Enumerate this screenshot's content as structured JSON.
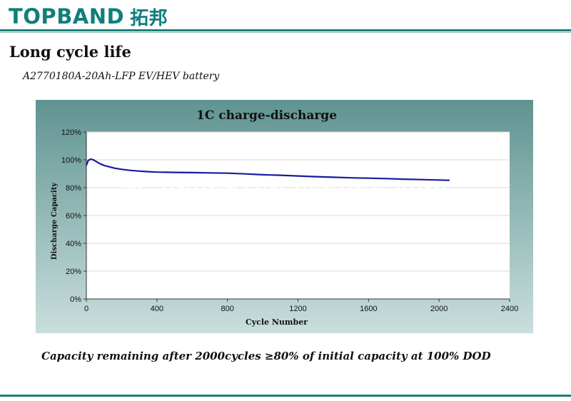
{
  "header": {
    "logo_text": "TOPBAND",
    "logo_cn": "拓邦"
  },
  "page": {
    "title": "Long cycle life",
    "subtitle": "A2770180A-20Ah-LFP  EV/HEV battery",
    "caption": "Capacity remaining after 2000cycles ≥80% of initial capacity at 100% DOD"
  },
  "watermark": "tp–energy.en.alibaba.com",
  "colors": {
    "accent": "#1f7e77",
    "series": "#1a1aa0"
  },
  "chart_data": {
    "type": "line",
    "title": "1C charge-discharge",
    "xlabel": "Cycle Number",
    "ylabel": "Discharge Capacity",
    "xlim": [
      0,
      2400
    ],
    "ylim": [
      0,
      120
    ],
    "xticks": [
      0,
      400,
      800,
      1200,
      1600,
      2000,
      2400
    ],
    "yticks": [
      0,
      20,
      40,
      60,
      80,
      100,
      120
    ],
    "xtick_labels": [
      "0",
      "400",
      "800",
      "1200",
      "1600",
      "2000",
      "2400"
    ],
    "ytick_labels": [
      "0%",
      "20%",
      "40%",
      "60%",
      "80%",
      "100%",
      "120%"
    ],
    "y_unit": "%",
    "grid": {
      "horizontal": true,
      "vertical": false
    },
    "legend": "none",
    "series": [
      {
        "x": [
          0,
          10,
          25,
          40,
          60,
          80,
          100,
          130,
          160,
          200,
          250,
          300,
          350,
          400,
          450,
          500,
          600,
          700,
          800,
          900,
          1000,
          1100,
          1200,
          1300,
          1400,
          1500,
          1600,
          1700,
          1800,
          1900,
          2000,
          2060
        ],
        "y": [
          96,
          99.5,
          100.5,
          100,
          98.5,
          97,
          96,
          95,
          94,
          93.2,
          92.4,
          91.9,
          91.5,
          91.2,
          91.1,
          91,
          90.8,
          90.6,
          90.4,
          89.9,
          89.3,
          88.9,
          88.4,
          87.9,
          87.5,
          87.1,
          86.8,
          86.5,
          86.1,
          85.8,
          85.5,
          85.3
        ]
      }
    ]
  }
}
